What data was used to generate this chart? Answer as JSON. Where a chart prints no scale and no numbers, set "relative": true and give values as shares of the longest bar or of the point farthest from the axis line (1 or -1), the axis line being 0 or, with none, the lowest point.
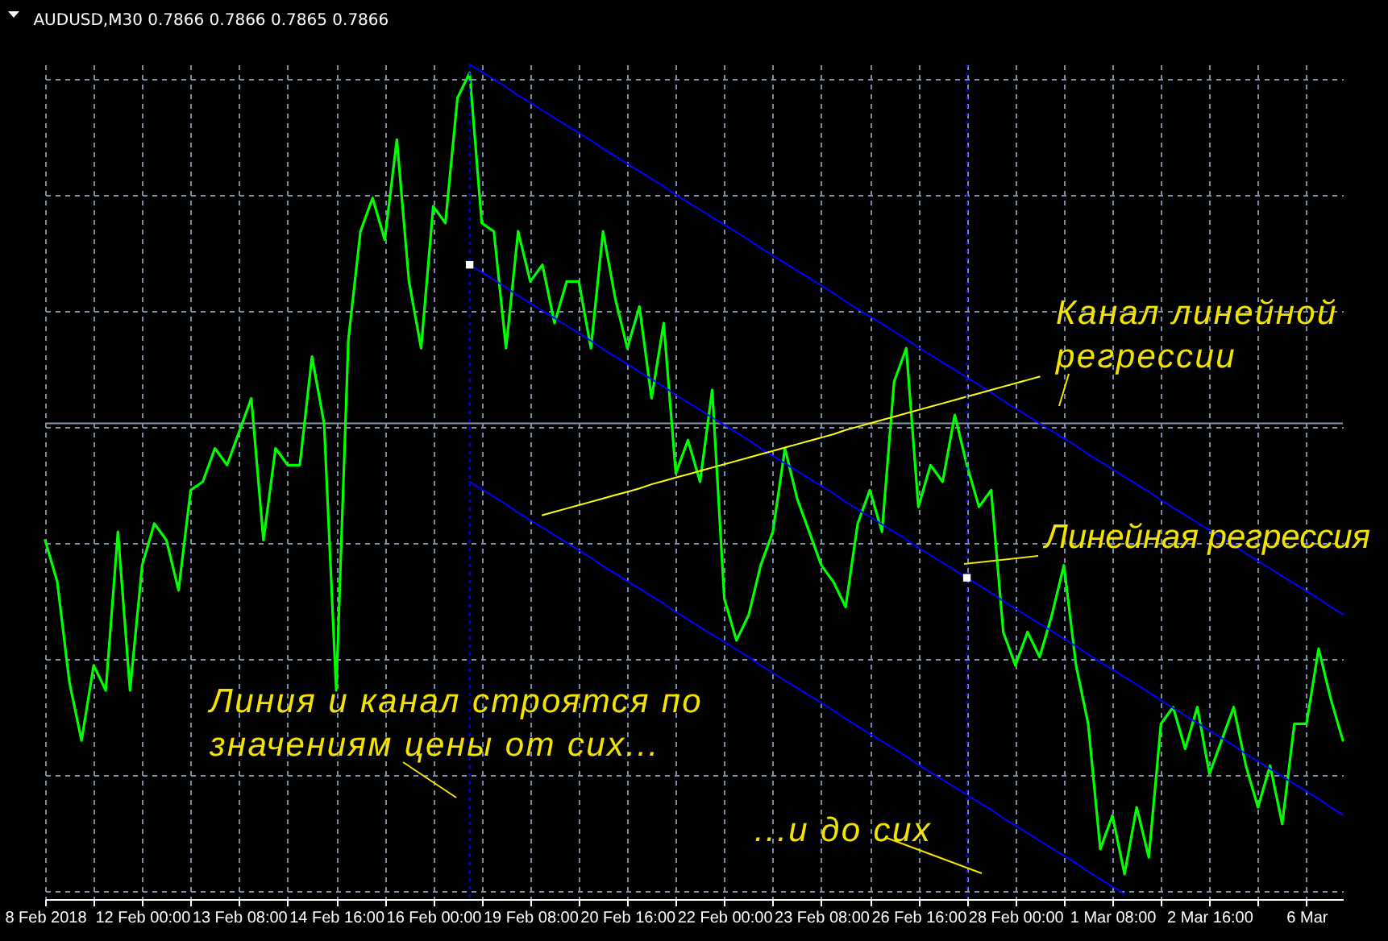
{
  "chart_data": {
    "type": "line",
    "title": "AUDUSD,M30  0.7866 0.7866 0.7865 0.7866",
    "relative": true,
    "grid": true,
    "categories": [
      "8 Feb 2018",
      null,
      null,
      null,
      null,
      null,
      null,
      null,
      "12 Feb 00:00",
      null,
      null,
      null,
      null,
      null,
      null,
      null,
      "13 Feb 08:00",
      null,
      null,
      null,
      null,
      null,
      null,
      null,
      "14 Feb 16:00",
      null,
      null,
      null,
      null,
      null,
      null,
      null,
      "16 Feb 00:00",
      null,
      null,
      null,
      null,
      null,
      null,
      null,
      "19 Feb 08:00",
      null,
      null,
      null,
      null,
      null,
      null,
      null,
      "20 Feb 16:00",
      null,
      null,
      null,
      null,
      null,
      null,
      null,
      "22 Feb 00:00",
      null,
      null,
      null,
      null,
      null,
      null,
      null,
      "23 Feb 08:00",
      null,
      null,
      null,
      null,
      null,
      null,
      null,
      "26 Feb 16:00",
      null,
      null,
      null,
      null,
      null,
      null,
      null,
      "28 Feb 00:00",
      null,
      null,
      null,
      null,
      null,
      null,
      null,
      "1 Mar 08:00",
      null,
      null,
      null,
      null,
      null,
      null,
      null,
      "2 Mar 16:00",
      null,
      null,
      null,
      null,
      null,
      null,
      null,
      "6 Mar",
      null,
      null,
      null
    ],
    "ref_lines": [
      {
        "axis": "y",
        "value": 0.57,
        "color": "#8896a8",
        "line_style": "solid"
      }
    ],
    "annotations": [
      "Канал линейной регрессии",
      "Линейная регрессия",
      "Линия и канал строятся по значениям цены от сих...",
      "...и до сих"
    ],
    "series": [
      {
        "color": "#00ff00",
        "values": [
          0.43,
          0.38,
          0.26,
          0.19,
          0.28,
          0.25,
          0.44,
          0.25,
          0.4,
          0.45,
          0.43,
          0.37,
          0.49,
          0.5,
          0.54,
          0.52,
          0.56,
          0.6,
          0.43,
          0.54,
          0.52,
          0.52,
          0.65,
          0.57,
          0.25,
          0.67,
          0.8,
          0.84,
          0.79,
          0.91,
          0.74,
          0.66,
          0.83,
          0.81,
          0.96,
          0.99,
          0.81,
          0.8,
          0.66,
          0.8,
          0.74,
          0.76,
          0.69,
          0.74,
          0.74,
          0.66,
          0.8,
          0.72,
          0.66,
          0.71,
          0.6,
          0.69,
          0.51,
          0.55,
          0.5,
          0.61,
          0.36,
          0.31,
          0.34,
          0.4,
          0.44,
          0.54,
          0.48,
          0.44,
          0.4,
          0.38,
          0.35,
          0.45,
          0.49,
          0.44,
          0.62,
          0.66,
          0.47,
          0.52,
          0.5,
          0.58,
          0.52,
          0.47,
          0.49,
          0.32,
          0.28,
          0.32,
          0.29,
          0.34,
          0.4,
          0.28,
          0.21,
          0.06,
          0.1,
          0.03,
          0.11,
          0.05,
          0.21,
          0.23,
          0.18,
          0.23,
          0.15,
          0.19,
          0.23,
          0.16,
          0.11,
          0.16,
          0.09,
          0.21,
          0.21,
          0.3,
          0.24,
          0.19
        ]
      },
      {
        "color": "#0000ff",
        "values": [
          null,
          null,
          null,
          null,
          null,
          null,
          null,
          null,
          null,
          null,
          null,
          null,
          null,
          null,
          null,
          null,
          null,
          null,
          null,
          null,
          null,
          null,
          null,
          null,
          null,
          null,
          null,
          null,
          null,
          null,
          null,
          null,
          null,
          null,
          null,
          1.0,
          0.991,
          0.982,
          0.973,
          0.963,
          0.954,
          0.945,
          0.936,
          0.927,
          0.918,
          0.909,
          0.899,
          0.89,
          0.881,
          0.872,
          0.863,
          0.854,
          0.844,
          0.835,
          0.826,
          0.817,
          0.808,
          0.799,
          0.79,
          0.78,
          0.771,
          0.762,
          0.753,
          0.744,
          0.735,
          0.726,
          0.716,
          0.707,
          0.698,
          0.689,
          0.68,
          0.671,
          0.661,
          0.652,
          0.643,
          0.634,
          0.625,
          0.616,
          0.607,
          0.597,
          0.588,
          0.579,
          0.57,
          0.561,
          0.552,
          0.543,
          0.533,
          0.524,
          0.515,
          0.506,
          0.497,
          0.488,
          0.478,
          0.469,
          0.46,
          0.451,
          0.442,
          0.433,
          0.424,
          0.414,
          0.405,
          0.396,
          0.387,
          0.378,
          0.369,
          0.36,
          0.35,
          0.341
        ]
      },
      {
        "color": "#0000ff",
        "values": [
          null,
          null,
          null,
          null,
          null,
          null,
          null,
          null,
          null,
          null,
          null,
          null,
          null,
          null,
          null,
          null,
          null,
          null,
          null,
          null,
          null,
          null,
          null,
          null,
          null,
          null,
          null,
          null,
          null,
          null,
          null,
          null,
          null,
          null,
          null,
          0.76,
          0.751,
          0.742,
          0.733,
          0.723,
          0.714,
          0.705,
          0.696,
          0.687,
          0.678,
          0.669,
          0.659,
          0.65,
          0.641,
          0.632,
          0.623,
          0.614,
          0.604,
          0.595,
          0.586,
          0.577,
          0.568,
          0.559,
          0.55,
          0.54,
          0.531,
          0.522,
          0.513,
          0.504,
          0.495,
          0.486,
          0.476,
          0.467,
          0.458,
          0.449,
          0.44,
          0.431,
          0.421,
          0.412,
          0.403,
          0.394,
          0.385,
          0.376,
          0.367,
          0.357,
          0.348,
          0.339,
          0.33,
          0.321,
          0.312,
          0.303,
          0.293,
          0.284,
          0.275,
          0.266,
          0.257,
          0.248,
          0.238,
          0.229,
          0.22,
          0.211,
          0.202,
          0.193,
          0.184,
          0.174,
          0.165,
          0.156,
          0.147,
          0.138,
          0.129,
          0.12,
          0.11,
          0.101
        ]
      },
      {
        "color": "#0000ff",
        "values": [
          null,
          null,
          null,
          null,
          null,
          null,
          null,
          null,
          null,
          null,
          null,
          null,
          null,
          null,
          null,
          null,
          null,
          null,
          null,
          null,
          null,
          null,
          null,
          null,
          null,
          null,
          null,
          null,
          null,
          null,
          null,
          null,
          null,
          null,
          null,
          0.5,
          0.491,
          0.482,
          0.473,
          0.463,
          0.454,
          0.445,
          0.436,
          0.427,
          0.418,
          0.409,
          0.399,
          0.39,
          0.381,
          0.372,
          0.363,
          0.354,
          0.344,
          0.335,
          0.326,
          0.317,
          0.308,
          0.299,
          0.29,
          0.28,
          0.271,
          0.262,
          0.253,
          0.244,
          0.235,
          0.226,
          0.216,
          0.207,
          0.198,
          0.189,
          0.18,
          0.171,
          0.161,
          0.152,
          0.143,
          0.134,
          0.125,
          0.116,
          0.107,
          0.097,
          0.088,
          0.079,
          0.07,
          0.061,
          0.052,
          0.043,
          0.033,
          0.024,
          0.015,
          0.006,
          null,
          null,
          null,
          null,
          null,
          null,
          null,
          null,
          null,
          null,
          null,
          null,
          null,
          null,
          null,
          null,
          null,
          null
        ]
      },
      {
        "color": "#ffff00",
        "values": [
          null,
          null,
          null,
          null,
          null,
          null,
          null,
          null,
          null,
          null,
          null,
          null,
          null,
          null,
          null,
          null,
          null,
          null,
          null,
          null,
          null,
          null,
          null,
          null,
          null,
          null,
          null,
          null,
          null,
          null,
          null,
          null,
          null,
          null,
          null,
          null,
          null,
          null,
          null,
          null,
          null,
          0.46,
          0.464,
          0.468,
          0.472,
          0.476,
          0.48,
          0.484,
          0.488,
          0.492,
          0.497,
          0.501,
          0.505,
          0.509,
          0.513,
          0.517,
          0.521,
          0.525,
          0.529,
          0.533,
          0.537,
          0.541,
          0.545,
          0.549,
          0.553,
          0.557,
          0.562,
          0.566,
          0.57,
          0.574,
          0.578,
          0.582,
          0.586,
          0.59,
          0.594,
          0.598,
          0.602,
          0.606,
          0.61,
          0.614,
          0.618,
          0.622,
          0.626,
          null,
          null,
          null,
          null,
          null,
          null,
          null,
          null,
          null,
          null,
          null,
          null,
          null,
          null,
          null,
          null,
          null,
          null,
          null,
          null,
          null,
          null,
          null,
          null,
          null
        ]
      },
      {
        "type": "scatter",
        "color": "#ffffff",
        "marker": "square",
        "values": [
          null,
          null,
          null,
          null,
          null,
          null,
          null,
          null,
          null,
          null,
          null,
          null,
          null,
          null,
          null,
          null,
          null,
          null,
          null,
          null,
          null,
          null,
          null,
          null,
          null,
          null,
          null,
          null,
          null,
          null,
          null,
          null,
          null,
          null,
          null,
          0.76,
          null,
          null,
          null,
          null,
          null,
          null,
          null,
          null,
          null,
          null,
          null,
          null,
          null,
          null,
          null,
          null,
          null,
          null,
          null,
          null,
          null,
          null,
          null,
          null,
          null,
          null,
          null,
          null,
          null,
          null,
          null,
          null,
          null,
          null,
          null,
          null,
          null,
          null,
          null,
          null,
          0.385,
          null,
          null,
          null,
          null,
          null,
          null,
          null,
          null,
          null,
          null,
          null,
          null,
          null,
          null,
          null,
          null,
          null,
          null,
          null,
          null,
          null,
          null,
          null,
          null,
          null,
          null,
          null,
          null,
          null,
          null,
          null
        ]
      }
    ]
  }
}
